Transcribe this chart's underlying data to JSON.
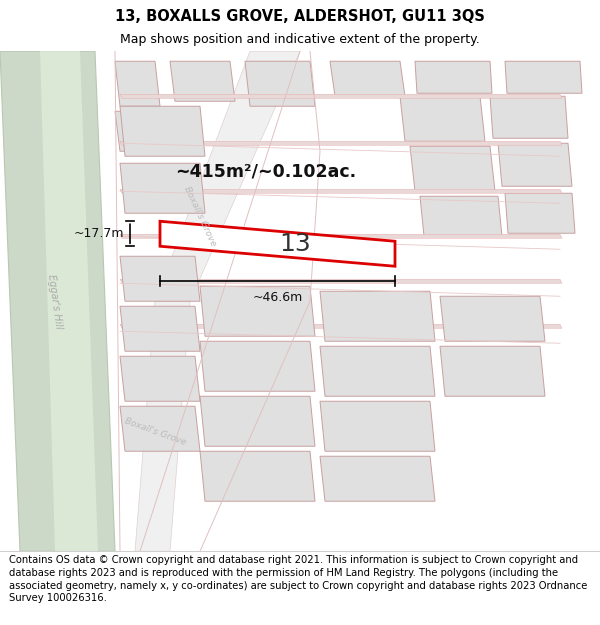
{
  "title": "13, BOXALLS GROVE, ALDERSHOT, GU11 3QS",
  "subtitle": "Map shows position and indicative extent of the property.",
  "footer": "Contains OS data © Crown copyright and database right 2021. This information is subject to Crown copyright and database rights 2023 and is reproduced with the permission of HM Land Registry. The polygons (including the associated geometry, namely x, y co-ordinates) are subject to Crown copyright and database rights 2023 Ordnance Survey 100026316.",
  "title_fontsize": 10.5,
  "subtitle_fontsize": 9,
  "footer_fontsize": 7.2,
  "label_area": "~415m²/~0.102ac.",
  "label_width": "~46.6m",
  "label_height": "~17.7m",
  "label_number": "13",
  "road_label_1": "Eggar's Hill",
  "road_label_2": "Boxall's Grove",
  "road_label_3": "Boxall's Grove",
  "bg_color": "#ffffff",
  "map_bg": "#f8f8f8",
  "road_green_fill": "#cdd9c8",
  "road_green_light": "#dce8d6",
  "road_white_fill": "#f5f5f5",
  "prop_fill": "#ffffff",
  "prop_edge": "#dd0000",
  "grey_fill": "#e0e0e0",
  "grey_edge": "#c8a0a0",
  "line_fill": "#e8d8d8",
  "line_edge": "#e8a8a8"
}
